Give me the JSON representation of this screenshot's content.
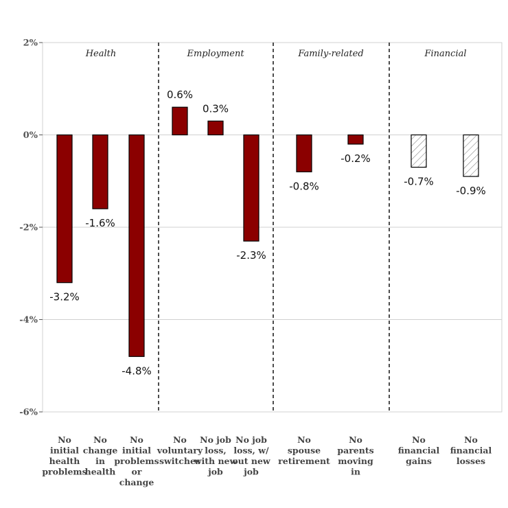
{
  "chart_data": {
    "type": "bar",
    "title": "",
    "xlabel": "",
    "ylabel": "",
    "ylim": [
      -6,
      2
    ],
    "yticks": [
      {
        "value": 2,
        "label": "2%"
      },
      {
        "value": 0,
        "label": "0%"
      },
      {
        "value": -2,
        "label": "-2%"
      },
      {
        "value": -4,
        "label": "-4%"
      },
      {
        "value": -6,
        "label": "-6%"
      }
    ],
    "grid": true,
    "groups": [
      {
        "name": "Health",
        "bars": [
          {
            "category": [
              "No",
              "initial",
              "health",
              "problems"
            ],
            "value": -3.2,
            "label": "-3.2%",
            "style": "solid"
          },
          {
            "category": [
              "No",
              "change",
              "in",
              "health"
            ],
            "value": -1.6,
            "label": "-1.6%",
            "style": "solid"
          },
          {
            "category": [
              "No",
              "initial",
              "problems",
              "or",
              "change"
            ],
            "value": -4.8,
            "label": "-4.8%",
            "style": "solid"
          }
        ]
      },
      {
        "name": "Employment",
        "bars": [
          {
            "category": [
              "No",
              "voluntary",
              "switches"
            ],
            "value": 0.6,
            "label": "0.6%",
            "style": "solid"
          },
          {
            "category": [
              "No job",
              "loss,",
              "with new",
              "job"
            ],
            "value": 0.3,
            "label": "0.3%",
            "style": "solid"
          },
          {
            "category": [
              "No job",
              "loss, w/",
              "out new",
              "job"
            ],
            "value": -2.3,
            "label": "-2.3%",
            "style": "solid"
          }
        ]
      },
      {
        "name": "Family-related",
        "bars": [
          {
            "category": [
              "No",
              "spouse",
              "retirement"
            ],
            "value": -0.8,
            "label": "-0.8%",
            "style": "solid"
          },
          {
            "category": [
              "No",
              "parents",
              "moving",
              "in"
            ],
            "value": -0.2,
            "label": "-0.2%",
            "style": "solid"
          }
        ]
      },
      {
        "name": "Financial",
        "bars": [
          {
            "category": [
              "No",
              "financial",
              "gains"
            ],
            "value": -0.7,
            "label": "-0.7%",
            "style": "hatched"
          },
          {
            "category": [
              "No",
              "financial",
              "losses"
            ],
            "value": -0.9,
            "label": "-0.9%",
            "style": "hatched"
          }
        ]
      }
    ],
    "colors": {
      "bar_fill": "#8b0000",
      "hatch_stroke": "#888888",
      "grid": "#d0d0d0",
      "separator": "#000000"
    }
  }
}
